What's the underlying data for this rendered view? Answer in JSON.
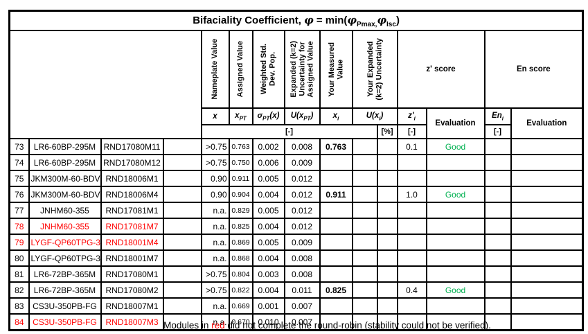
{
  "colors": {
    "red": "#FF0000",
    "green": "#00B050",
    "border": "#000000"
  },
  "title": {
    "prefix": "Bifaciality Coefficient,",
    "phi": "φ",
    "eq": "= min(",
    "sub_pmax": "Pmax,",
    "sub_isc": "Isc",
    "close": ")"
  },
  "header": {
    "rotated": [
      "Nameplate Value",
      "Assigned Value",
      "Weighted Std.\nDev. Pop.",
      "Expanded (k=2)\nUncertainty for\nAssigned Value",
      "Your Measured\nValue",
      "Your Expanded\n(k=2) Uncertainty"
    ],
    "z_score": "z' score",
    "en_score": "En score",
    "symbols": {
      "x": {
        "base": "x"
      },
      "xpt": {
        "base": "x",
        "sub": "PT"
      },
      "sigma": {
        "base": "σ",
        "sub": "PT",
        "after": "(x)"
      },
      "uxpt": {
        "base": "U(x",
        "sub": "PT",
        "after": ")"
      },
      "xi": {
        "base": "x",
        "sub": "i"
      },
      "uxi": {
        "base": "U(x",
        "sub": "i",
        "after": ")"
      },
      "zi": {
        "base": "z'",
        "sub": "i"
      },
      "eni": {
        "base": "En",
        "sub": "i"
      },
      "evaluation": "Evaluation"
    },
    "units": {
      "dimensionless": "[-]",
      "percent": "[%]"
    }
  },
  "rows": [
    {
      "num": "73",
      "module": "LR6-60BP-295M",
      "serial": "RND17080M11",
      "x": ">0.75",
      "x_pt": "0.763",
      "sigma": "0.002",
      "u_xpt": "0.008",
      "x_i": "0.763",
      "u_xi_abs": "",
      "u_xi_pct": "",
      "z_i": "0.1",
      "z_eval": "Good",
      "en_i": "",
      "en_eval": "",
      "red": false
    },
    {
      "num": "74",
      "module": "LR6-60BP-295M",
      "serial": "RND17080M12",
      "x": ">0.75",
      "x_pt": "0.750",
      "sigma": "0.006",
      "u_xpt": "0.009",
      "x_i": "",
      "u_xi_abs": "",
      "u_xi_pct": "",
      "z_i": "",
      "z_eval": "",
      "en_i": "",
      "en_eval": "",
      "red": false
    },
    {
      "num": "75",
      "module": "JKM300M-60-BDV",
      "serial": "RND18006M1",
      "x": "0.90",
      "x_pt": "0.911",
      "sigma": "0.005",
      "u_xpt": "0.012",
      "x_i": "",
      "u_xi_abs": "",
      "u_xi_pct": "",
      "z_i": "",
      "z_eval": "",
      "en_i": "",
      "en_eval": "",
      "red": false
    },
    {
      "num": "76",
      "module": "JKM300M-60-BDV",
      "serial": "RND18006M4",
      "x": "0.90",
      "x_pt": "0.904",
      "sigma": "0.004",
      "u_xpt": "0.012",
      "x_i": "0.911",
      "u_xi_abs": "",
      "u_xi_pct": "",
      "z_i": "1.0",
      "z_eval": "Good",
      "en_i": "",
      "en_eval": "",
      "red": false
    },
    {
      "num": "77",
      "module": "JNHM60-355",
      "serial": "RND17081M1",
      "x": "n.a.",
      "x_pt": "0.829",
      "sigma": "0.005",
      "u_xpt": "0.012",
      "x_i": "",
      "u_xi_abs": "",
      "u_xi_pct": "",
      "z_i": "",
      "z_eval": "",
      "en_i": "",
      "en_eval": "",
      "red": false
    },
    {
      "num": "78",
      "module": "JNHM60-355",
      "serial": "RND17081M7",
      "x": "n.a.",
      "x_pt": "0.825",
      "sigma": "0.004",
      "u_xpt": "0.012",
      "x_i": "",
      "u_xi_abs": "",
      "u_xi_pct": "",
      "z_i": "",
      "z_eval": "",
      "en_i": "",
      "en_eval": "",
      "red": true
    },
    {
      "num": "79",
      "module": "LYGF-QP60TPG-335",
      "serial": "RND18001M4",
      "x": "n.a.",
      "x_pt": "0.869",
      "sigma": "0.005",
      "u_xpt": "0.009",
      "x_i": "",
      "u_xi_abs": "",
      "u_xi_pct": "",
      "z_i": "",
      "z_eval": "",
      "en_i": "",
      "en_eval": "",
      "red": true
    },
    {
      "num": "80",
      "module": "LYGF-QP60TPG-335",
      "serial": "RND18001M7",
      "x": "n.a.",
      "x_pt": "0.868",
      "sigma": "0.004",
      "u_xpt": "0.008",
      "x_i": "",
      "u_xi_abs": "",
      "u_xi_pct": "",
      "z_i": "",
      "z_eval": "",
      "en_i": "",
      "en_eval": "",
      "red": false
    },
    {
      "num": "81",
      "module": "LR6-72BP-365M",
      "serial": "RND17080M1",
      "x": ">0.75",
      "x_pt": "0.804",
      "sigma": "0.003",
      "u_xpt": "0.008",
      "x_i": "",
      "u_xi_abs": "",
      "u_xi_pct": "",
      "z_i": "",
      "z_eval": "",
      "en_i": "",
      "en_eval": "",
      "red": false
    },
    {
      "num": "82",
      "module": "LR6-72BP-365M",
      "serial": "RND17080M2",
      "x": ">0.75",
      "x_pt": "0.822",
      "sigma": "0.004",
      "u_xpt": "0.011",
      "x_i": "0.825",
      "u_xi_abs": "",
      "u_xi_pct": "",
      "z_i": "0.4",
      "z_eval": "Good",
      "en_i": "",
      "en_eval": "",
      "red": false
    },
    {
      "num": "83",
      "module": "CS3U-350PB-FG",
      "serial": "RND18007M1",
      "x": "n.a.",
      "x_pt": "0.669",
      "sigma": "0.001",
      "u_xpt": "0.007",
      "x_i": "",
      "u_xi_abs": "",
      "u_xi_pct": "",
      "z_i": "",
      "z_eval": "",
      "en_i": "",
      "en_eval": "",
      "red": false
    },
    {
      "num": "84",
      "module": "CS3U-350PB-FG",
      "serial": "RND18007M3",
      "x": "n.a.",
      "x_pt": "0.670",
      "sigma": "0.010",
      "u_xpt": "0.007",
      "x_i": "",
      "u_xi_abs": "",
      "u_xi_pct": "",
      "z_i": "",
      "z_eval": "",
      "en_i": "",
      "en_eval": "",
      "red": true
    }
  ],
  "footnote": {
    "part1": "Modules in ",
    "red_word": "red",
    "part2": " did not complete the round-robin (stability could not be verified)."
  }
}
